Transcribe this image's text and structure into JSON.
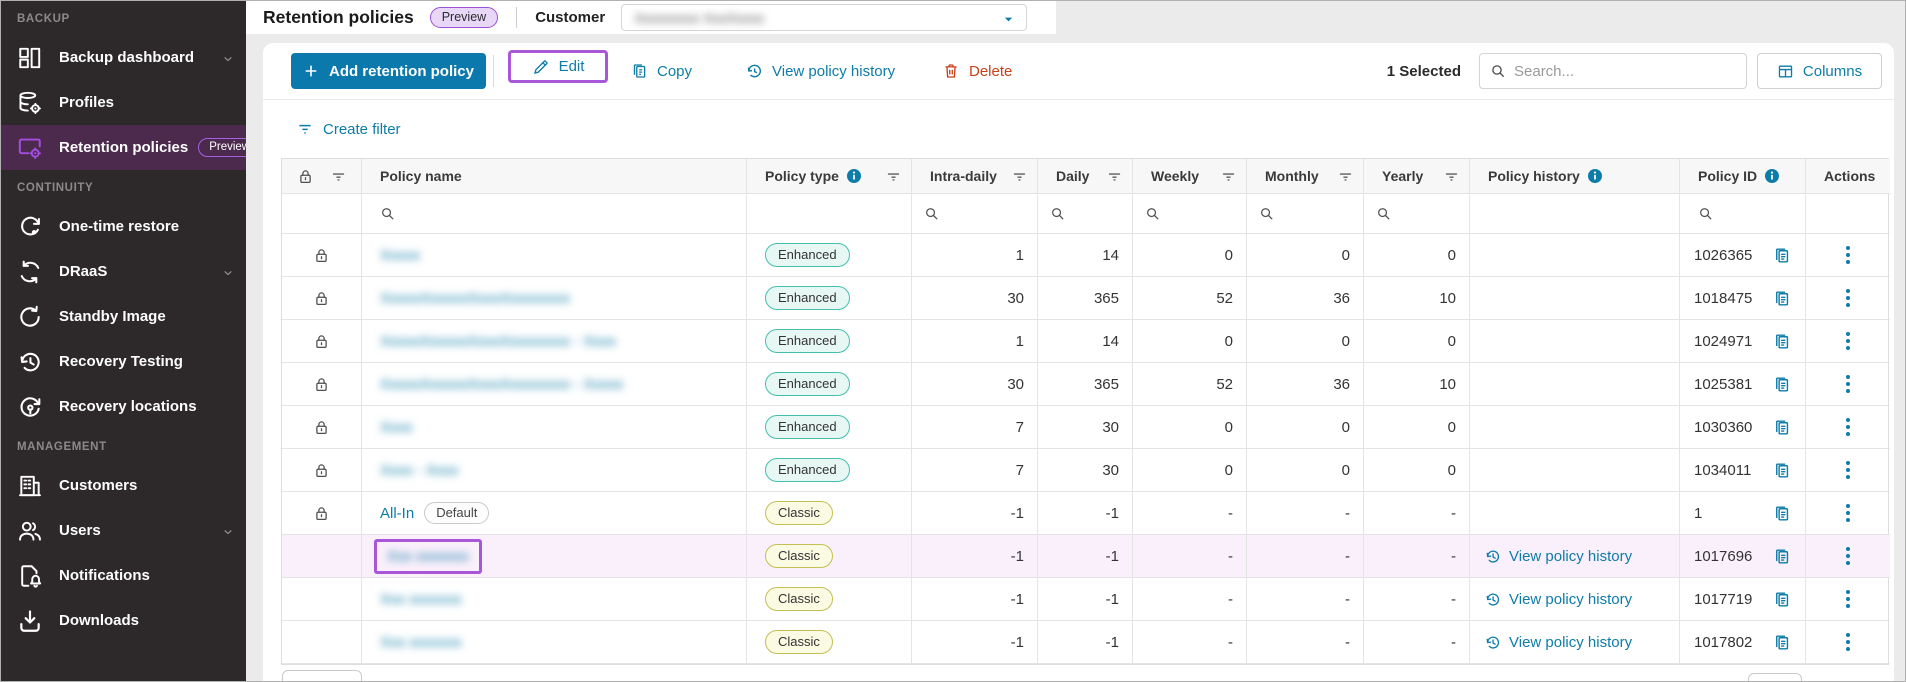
{
  "header": {
    "title": "Retention policies",
    "badge": "Preview",
    "customer_label": "Customer",
    "customer_value": "Xxxxxxxxx XxxXxxxx",
    "customer_redacted": true
  },
  "toolbar": {
    "add_label": "Add retention policy",
    "edit_label": "Edit",
    "copy_label": "Copy",
    "view_history_label": "View policy history",
    "delete_label": "Delete",
    "selected_count": "1 Selected",
    "search_placeholder": "Search...",
    "columns_label": "Columns",
    "create_filter_label": "Create filter"
  },
  "sidebar": {
    "sections": [
      {
        "label": "BACKUP",
        "items": [
          {
            "label": "Backup dashboard",
            "icon": "dashboard",
            "chevron": true
          },
          {
            "label": "Profiles",
            "icon": "profiles"
          },
          {
            "label": "Retention policies",
            "icon": "retention",
            "active": true,
            "badge": "Preview"
          }
        ]
      },
      {
        "label": "CONTINUITY",
        "items": [
          {
            "label": "One-time restore",
            "icon": "restore"
          },
          {
            "label": "DRaaS",
            "icon": "draas",
            "chevron": true
          },
          {
            "label": "Standby Image",
            "icon": "standby"
          },
          {
            "label": "Recovery Testing",
            "icon": "history"
          },
          {
            "label": "Recovery locations",
            "icon": "locations"
          }
        ]
      },
      {
        "label": "MANAGEMENT",
        "items": [
          {
            "label": "Customers",
            "icon": "customers"
          },
          {
            "label": "Users",
            "icon": "users",
            "chevron": true
          },
          {
            "label": "Notifications",
            "icon": "notifications"
          },
          {
            "label": "Downloads",
            "icon": "downloads"
          }
        ]
      }
    ]
  },
  "table": {
    "columns": [
      {
        "key": "select",
        "label": "",
        "lock": true,
        "filter": true
      },
      {
        "key": "name",
        "label": "Policy name",
        "search": true
      },
      {
        "key": "type",
        "label": "Policy type",
        "info": true,
        "filter": true
      },
      {
        "key": "intra",
        "label": "Intra-daily",
        "filter": true,
        "search": true,
        "num": true
      },
      {
        "key": "daily",
        "label": "Daily",
        "filter": true,
        "search": true,
        "num": true
      },
      {
        "key": "weekly",
        "label": "Weekly",
        "filter": true,
        "search": true,
        "num": true
      },
      {
        "key": "monthly",
        "label": "Monthly",
        "filter": true,
        "search": true,
        "num": true
      },
      {
        "key": "yearly",
        "label": "Yearly",
        "filter": true,
        "search": true,
        "num": true
      },
      {
        "key": "history",
        "label": "Policy history",
        "info": true
      },
      {
        "key": "id",
        "label": "Policy ID",
        "info": true,
        "search": true
      },
      {
        "key": "actions",
        "label": "Actions"
      }
    ],
    "rows": [
      {
        "locked": true,
        "name": "Xxxxx",
        "redacted": true,
        "type": "Enhanced",
        "intra": "1",
        "daily": "14",
        "weekly": "0",
        "monthly": "0",
        "yearly": "0",
        "history": "",
        "policy_id": "1026365"
      },
      {
        "locked": true,
        "name": "XxxxxXxxxxxXxxxXxxxxxxxx",
        "redacted": true,
        "type": "Enhanced",
        "intra": "30",
        "daily": "365",
        "weekly": "52",
        "monthly": "36",
        "yearly": "10",
        "history": "",
        "policy_id": "1018475"
      },
      {
        "locked": true,
        "name": "XxxxxXxxxxxXxxxXxxxxxxxx - Xxxx",
        "redacted": true,
        "type": "Enhanced",
        "intra": "1",
        "daily": "14",
        "weekly": "0",
        "monthly": "0",
        "yearly": "0",
        "history": "",
        "policy_id": "1024971"
      },
      {
        "locked": true,
        "name": "XxxxxXxxxxxXxxxXxxxxxxxx - Xxxxx",
        "redacted": true,
        "type": "Enhanced",
        "intra": "30",
        "daily": "365",
        "weekly": "52",
        "monthly": "36",
        "yearly": "10",
        "history": "",
        "policy_id": "1025381"
      },
      {
        "locked": true,
        "name": "Xxxx",
        "redacted": true,
        "type": "Enhanced",
        "intra": "7",
        "daily": "30",
        "weekly": "0",
        "monthly": "0",
        "yearly": "0",
        "history": "",
        "policy_id": "1030360"
      },
      {
        "locked": true,
        "name": "Xxxx - Xxxx",
        "redacted": true,
        "type": "Enhanced",
        "intra": "7",
        "daily": "30",
        "weekly": "0",
        "monthly": "0",
        "yearly": "0",
        "history": "",
        "policy_id": "1034011"
      },
      {
        "locked": true,
        "name": "All-In",
        "name_badge": "Default",
        "redacted": false,
        "type": "Classic",
        "intra": "-1",
        "daily": "-1",
        "weekly": "-",
        "monthly": "-",
        "yearly": "-",
        "history": "",
        "policy_id": "1"
      },
      {
        "locked": false,
        "name": "Xxx xxxxxxx",
        "redacted": true,
        "selected": true,
        "annotated": true,
        "type": "Classic",
        "intra": "-1",
        "daily": "-1",
        "weekly": "-",
        "monthly": "-",
        "yearly": "-",
        "history": "View policy history",
        "policy_id": "1017696"
      },
      {
        "locked": false,
        "name": "Xxx xxxxxxx",
        "redacted": true,
        "type": "Classic",
        "intra": "-1",
        "daily": "-1",
        "weekly": "-",
        "monthly": "-",
        "yearly": "-",
        "history": "View policy history",
        "policy_id": "1017719"
      },
      {
        "locked": false,
        "name": "Xxx xxxxxxx",
        "redacted": true,
        "type": "Classic",
        "intra": "-1",
        "daily": "-1",
        "weekly": "-",
        "monthly": "-",
        "yearly": "-",
        "history": "View policy history",
        "policy_id": "1017802"
      }
    ]
  },
  "colors": {
    "accent_teal": "#0d7ca8",
    "primary_button": "#0b79ab",
    "delete_red": "#c8401a",
    "annotation_purple": "#a757d8",
    "sidebar_bg": "#2d292b",
    "sidebar_active_bg": "#4c2a4e",
    "sidebar_active_icon": "#a44ee0",
    "selected_row_bg": "#faf0fb",
    "enhanced_badge_border": "#44bfae",
    "classic_badge_border": "#c4bf55"
  }
}
